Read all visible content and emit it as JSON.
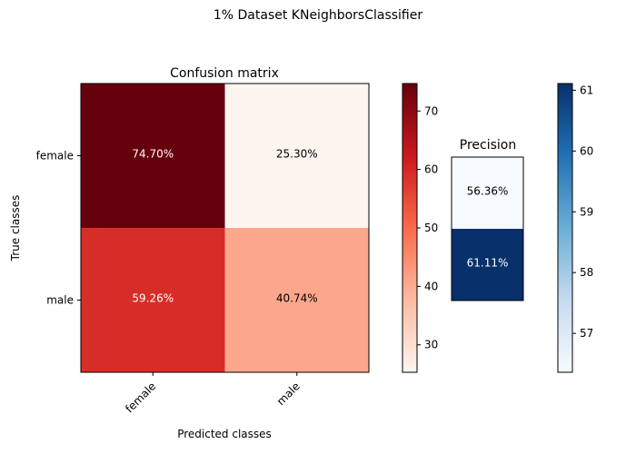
{
  "chart_data": [
    {
      "type": "heatmap",
      "suptitle": "1% Dataset KNeighborsClassifier",
      "title": "Confusion matrix",
      "xlabel": "Predicted classes",
      "ylabel": "True classes",
      "x_categories": [
        "female",
        "male"
      ],
      "y_categories": [
        "female",
        "male"
      ],
      "values": [
        [
          74.7,
          25.3
        ],
        [
          59.26,
          40.74
        ]
      ],
      "cell_labels": [
        [
          "74.70%",
          "25.30%"
        ],
        [
          "59.26%",
          "40.74%"
        ]
      ],
      "colormap": "Reds",
      "colorbar": {
        "ticks": [
          30,
          40,
          50,
          60,
          70
        ],
        "tick_labels": [
          "30",
          "40",
          "50",
          "60",
          "70"
        ],
        "range": [
          25.3,
          74.7
        ]
      }
    },
    {
      "type": "heatmap",
      "title": "Precision",
      "values": [
        [
          56.36
        ],
        [
          61.11
        ]
      ],
      "cell_labels": [
        [
          "56.36%"
        ],
        [
          "61.11%"
        ]
      ],
      "colormap": "Blues",
      "colorbar": {
        "ticks": [
          57,
          58,
          59,
          60,
          61
        ],
        "tick_labels": [
          "57",
          "58",
          "59",
          "60",
          "61"
        ],
        "range": [
          56.36,
          61.11
        ]
      }
    }
  ]
}
